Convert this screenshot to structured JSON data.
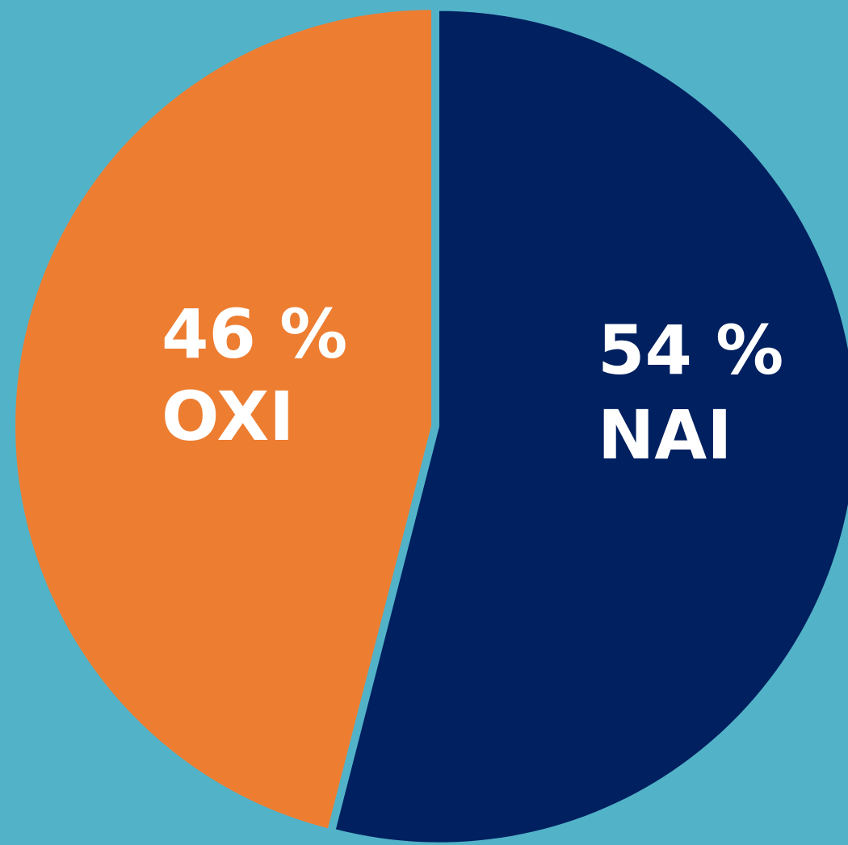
{
  "chart_data": {
    "type": "pie",
    "categories": [
      "NAI",
      "OXI"
    ],
    "values": [
      54,
      46
    ],
    "value_labels": [
      "54 %",
      "46 %"
    ],
    "colors": [
      "#002060",
      "#ed7d31"
    ]
  }
}
